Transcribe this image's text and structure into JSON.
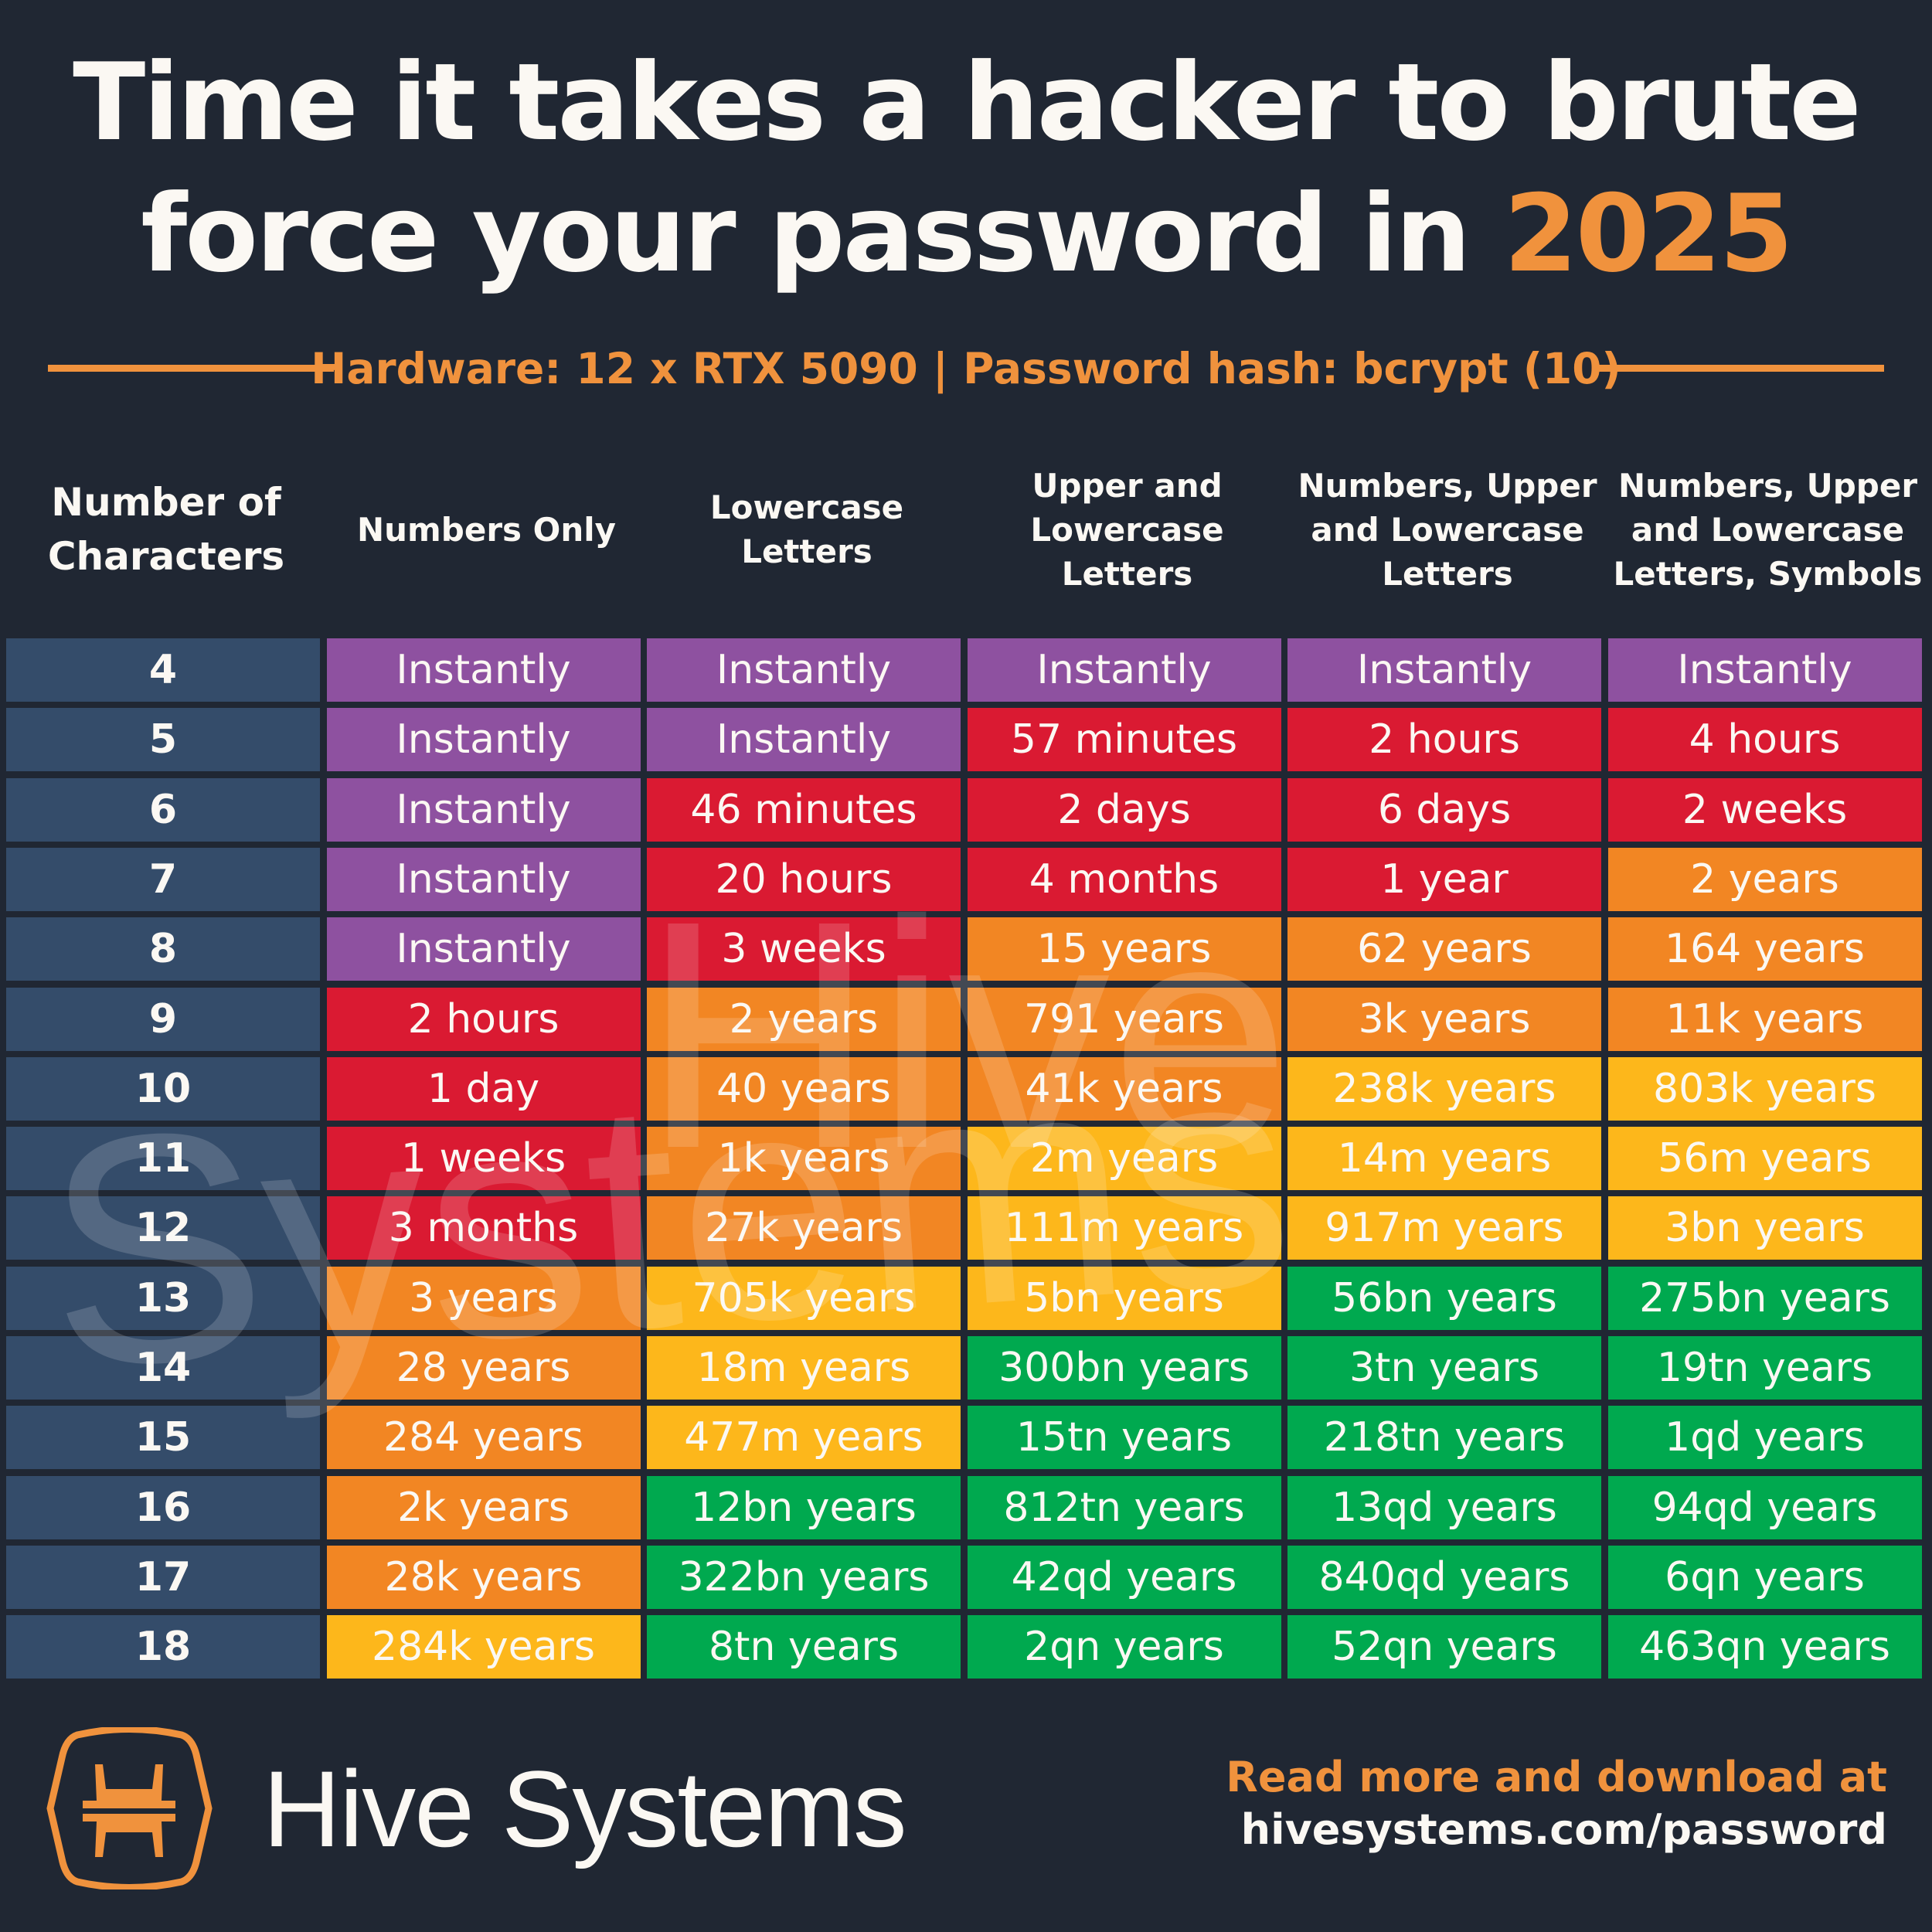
{
  "title": {
    "line1": "Time it takes a hacker to brute",
    "line2_prefix": "force your password in ",
    "year": "2025"
  },
  "subtitle": "Hardware: 12 x RTX 5090 | Password hash: bcrypt (10)",
  "columns": [
    "Number of Characters",
    "Numbers Only",
    "Lowercase Letters",
    "Upper and Lowercase Letters",
    "Numbers, Upper and Lowercase Letters",
    "Numbers, Upper and Lowercase Letters, Symbols"
  ],
  "tier_colors": {
    "P": "#8e51a0",
    "R": "#da1a32",
    "O": "#f28623",
    "Y": "#fdb71b",
    "G": "#00a94f"
  },
  "rows": [
    {
      "chars": "4",
      "tiers": "PPPPP",
      "cells": [
        "Instantly",
        "Instantly",
        "Instantly",
        "Instantly",
        "Instantly"
      ]
    },
    {
      "chars": "5",
      "tiers": "PPRRR",
      "cells": [
        "Instantly",
        "Instantly",
        "57 minutes",
        "2 hours",
        "4 hours"
      ]
    },
    {
      "chars": "6",
      "tiers": "PRRRR",
      "cells": [
        "Instantly",
        "46 minutes",
        "2 days",
        "6 days",
        "2 weeks"
      ]
    },
    {
      "chars": "7",
      "tiers": "PRRRO",
      "cells": [
        "Instantly",
        "20 hours",
        "4 months",
        "1 year",
        "2 years"
      ]
    },
    {
      "chars": "8",
      "tiers": "PROOO",
      "cells": [
        "Instantly",
        "3 weeks",
        "15 years",
        "62 years",
        "164 years"
      ]
    },
    {
      "chars": "9",
      "tiers": "ROOOO",
      "cells": [
        "2 hours",
        "2 years",
        "791 years",
        "3k years",
        "11k years"
      ]
    },
    {
      "chars": "10",
      "tiers": "ROOYY",
      "cells": [
        "1 day",
        "40 years",
        "41k years",
        "238k years",
        "803k years"
      ]
    },
    {
      "chars": "11",
      "tiers": "ROYYY",
      "cells": [
        "1 weeks",
        "1k years",
        "2m years",
        "14m years",
        "56m years"
      ]
    },
    {
      "chars": "12",
      "tiers": "ROYYY",
      "cells": [
        "3 months",
        "27k years",
        "111m years",
        "917m years",
        "3bn years"
      ]
    },
    {
      "chars": "13",
      "tiers": "OYYGG",
      "cells": [
        "3 years",
        "705k years",
        "5bn years",
        "56bn years",
        "275bn years"
      ]
    },
    {
      "chars": "14",
      "tiers": "OYGGG",
      "cells": [
        "28 years",
        "18m years",
        "300bn years",
        "3tn years",
        "19tn years"
      ]
    },
    {
      "chars": "15",
      "tiers": "OYGGG",
      "cells": [
        "284 years",
        "477m years",
        "15tn years",
        "218tn years",
        "1qd years"
      ]
    },
    {
      "chars": "16",
      "tiers": "OGGGG",
      "cells": [
        "2k years",
        "12bn years",
        "812tn years",
        "13qd years",
        "94qd years"
      ]
    },
    {
      "chars": "17",
      "tiers": "OGGGG",
      "cells": [
        "28k years",
        "322bn years",
        "42qd years",
        "840qd years",
        "6qn years"
      ]
    },
    {
      "chars": "18",
      "tiers": "YGGGG",
      "cells": [
        "284k years",
        "8tn years",
        "2qn years",
        "52qn years",
        "463qn years"
      ]
    }
  ],
  "watermark": {
    "line1": "Hive",
    "line2": "Systems"
  },
  "footer": {
    "brand": "Hive Systems",
    "logo_icon": "hive-hexagon-logo",
    "cta": "Read more and download at",
    "url": "hivesystems.com/password"
  }
}
